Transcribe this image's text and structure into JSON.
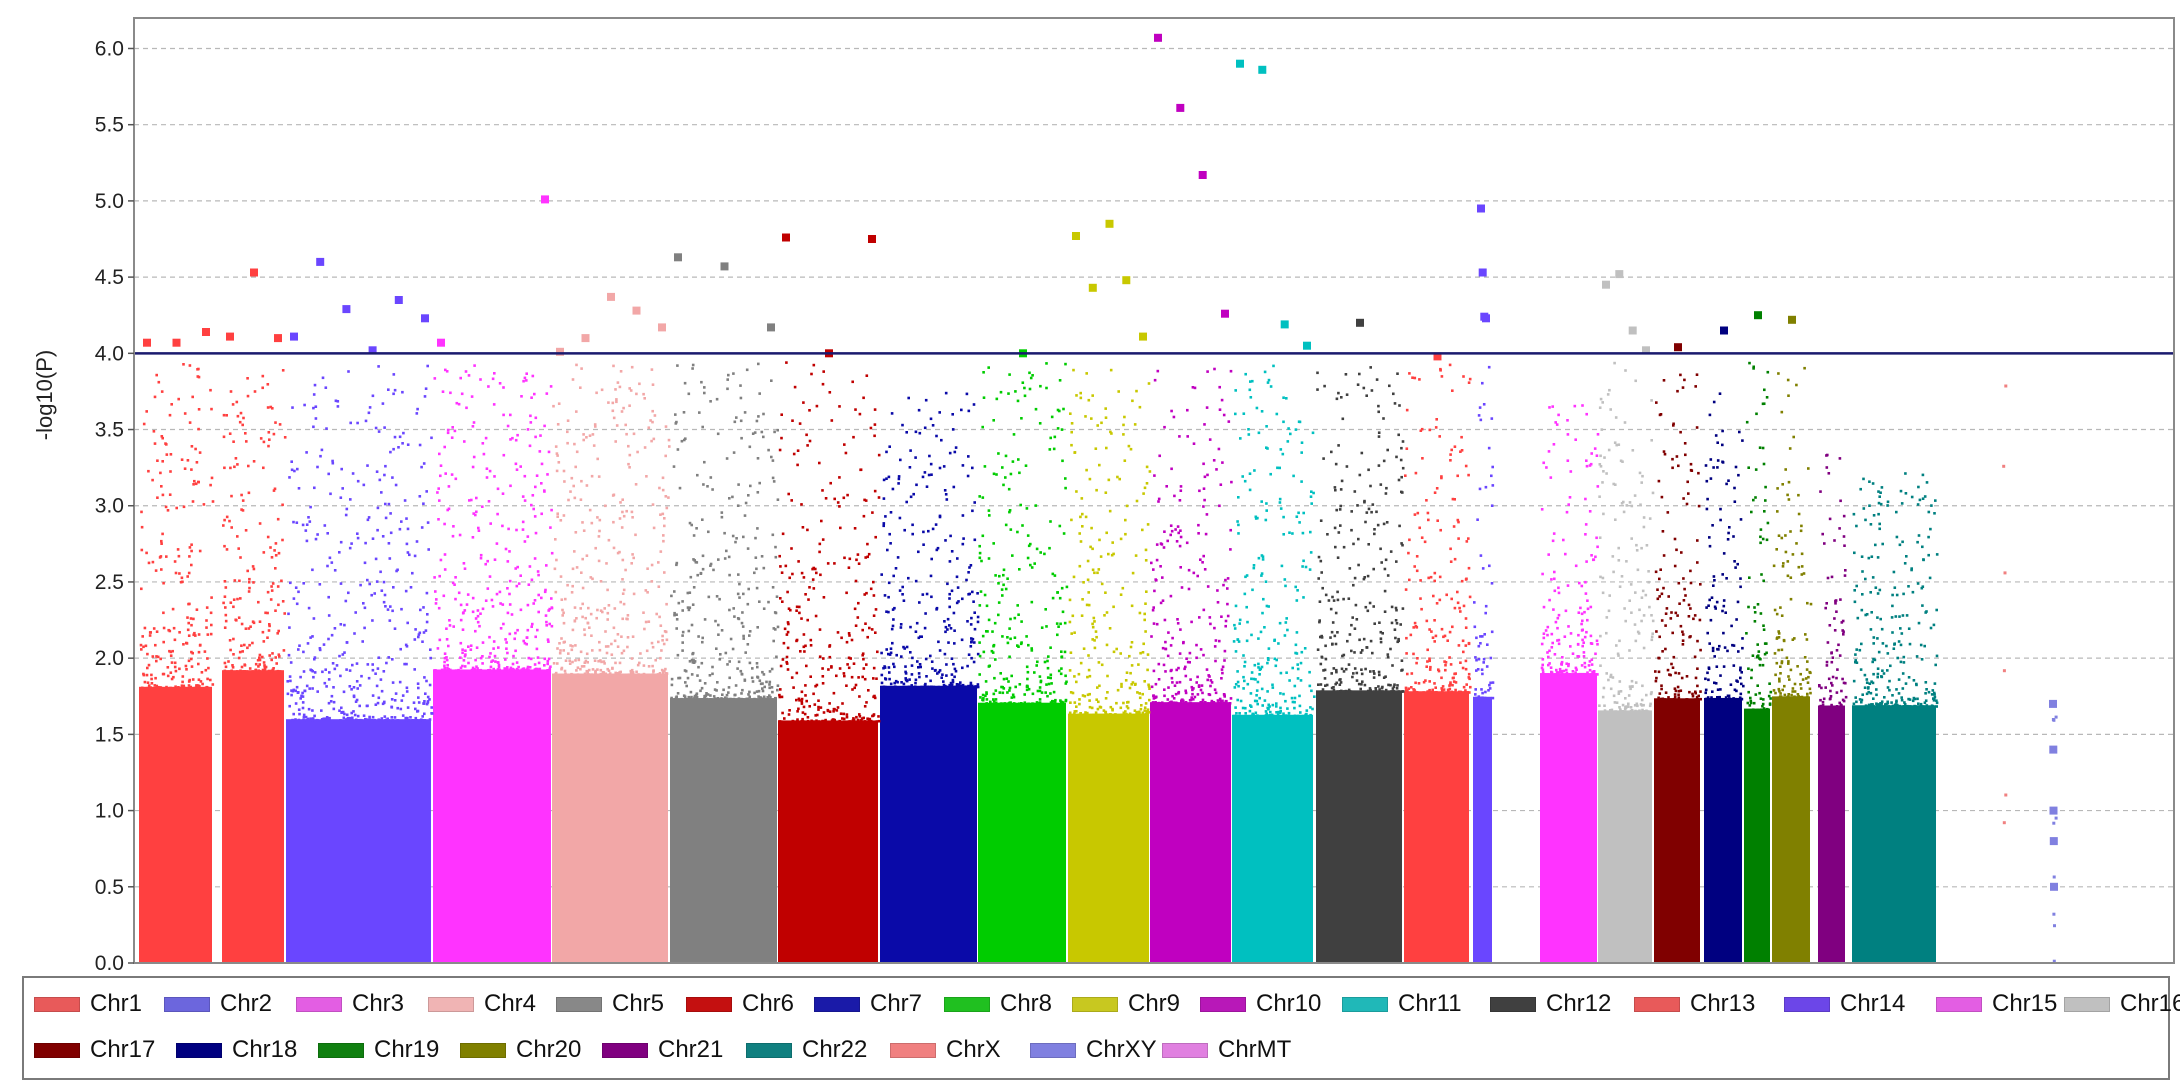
{
  "chart_data": {
    "type": "scatter",
    "subtype": "manhattan",
    "title": "",
    "xlabel": "",
    "ylabel": "-log10(P)",
    "ylim": [
      0,
      6.2
    ],
    "yticks": [
      "0.0",
      "0.5",
      "1.0",
      "1.5",
      "2.0",
      "2.5",
      "3.0",
      "3.5",
      "4.0",
      "4.5",
      "5.0",
      "5.5",
      "6.0"
    ],
    "threshold": 4.0,
    "grid": true,
    "legend_position": "bottom",
    "series": [
      {
        "name": "Chr1",
        "color": "#ff4040",
        "max": 4.15,
        "top_hits": [
          4.07,
          4.07,
          4.14
        ]
      },
      {
        "name": "Chr2",
        "color": "#ff4040",
        "max": 4.53,
        "top_hits": [
          4.11,
          4.53,
          4.1
        ]
      },
      {
        "name": "Chr3",
        "color": "#6a46ff",
        "max": 4.6,
        "top_hits": [
          4.11,
          4.6,
          4.29,
          4.02,
          4.35,
          4.23
        ]
      },
      {
        "name": "Chr4",
        "color": "#ff33ff",
        "max": 5.01,
        "top_hits": [
          4.07,
          5.01
        ]
      },
      {
        "name": "Chr5",
        "color": "#f2a7a7",
        "max": 4.37,
        "top_hits": [
          4.01,
          4.1,
          4.37,
          4.28,
          4.17
        ]
      },
      {
        "name": "Chr6",
        "color": "#808080",
        "max": 4.63,
        "top_hits": [
          4.63,
          4.57,
          4.17
        ]
      },
      {
        "name": "Chr7",
        "color": "#c00000",
        "max": 4.76,
        "top_hits": [
          4.76,
          4.0,
          4.75
        ]
      },
      {
        "name": "Chr8",
        "color": "#0a0aa8",
        "max": 3.8,
        "top_hits": []
      },
      {
        "name": "Chr9",
        "color": "#00cc00",
        "max": 4.0,
        "top_hits": [
          4.0
        ]
      },
      {
        "name": "Chr10",
        "color": "#c8c800",
        "max": 4.85,
        "top_hits": [
          4.77,
          4.43,
          4.85,
          4.48,
          4.11
        ]
      },
      {
        "name": "Chr11",
        "color": "#c000c0",
        "max": 6.07,
        "top_hits": [
          6.07,
          5.61,
          5.17,
          4.26
        ]
      },
      {
        "name": "Chr12",
        "color": "#00c0c0",
        "max": 5.9,
        "top_hits": [
          5.9,
          5.86,
          4.19,
          4.05
        ]
      },
      {
        "name": "Chr13",
        "color": "#404040",
        "max": 4.2,
        "top_hits": [
          4.2
        ]
      },
      {
        "name": "Chr14",
        "color": "#ff4040",
        "max": 4.0,
        "top_hits": [
          3.98
        ]
      },
      {
        "name": "Chr15",
        "color": "#6a46ff",
        "max": 4.95,
        "top_hits": [
          4.95,
          4.53,
          4.24,
          4.23
        ]
      },
      {
        "name": "Chr16",
        "color": "#ff33ff",
        "max": 3.7,
        "top_hits": []
      },
      {
        "name": "Chr17",
        "color": "#c0c0c0",
        "max": 4.52,
        "top_hits": [
          4.45,
          4.52,
          4.15,
          4.02
        ]
      },
      {
        "name": "Chr18",
        "color": "#800000",
        "max": 4.04,
        "top_hits": [
          4.04
        ]
      },
      {
        "name": "Chr19",
        "color": "#000080",
        "max": 4.15,
        "top_hits": [
          4.15
        ]
      },
      {
        "name": "Chr20",
        "color": "#008000",
        "max": 4.25,
        "top_hits": [
          4.25
        ]
      },
      {
        "name": "Chr21",
        "color": "#808000",
        "max": 4.22,
        "top_hits": [
          4.22
        ]
      },
      {
        "name": "Chr22",
        "color": "#800080",
        "max": 3.45,
        "top_hits": []
      },
      {
        "name": "ChrX",
        "color": "#008080",
        "max": 3.25,
        "top_hits": []
      },
      {
        "name": "ChrXY",
        "color": "#f08080",
        "max": 3.9,
        "top_hits": []
      },
      {
        "name": "ChrMT",
        "color": "#8080e0",
        "max": 1.7,
        "top_hits": [
          1.7,
          1.4,
          1.0,
          0.8,
          0.5
        ]
      }
    ],
    "legend": [
      {
        "label": "Chr1",
        "color": "#e85a5a"
      },
      {
        "label": "Chr2",
        "color": "#6c66dd"
      },
      {
        "label": "Chr3",
        "color": "#e35ee3"
      },
      {
        "label": "Chr4",
        "color": "#f0b4b4"
      },
      {
        "label": "Chr5",
        "color": "#888888"
      },
      {
        "label": "Chr6",
        "color": "#c41010"
      },
      {
        "label": "Chr7",
        "color": "#1a1aa8"
      },
      {
        "label": "Chr8",
        "color": "#20c020"
      },
      {
        "label": "Chr9",
        "color": "#c8c820"
      },
      {
        "label": "Chr10",
        "color": "#b818b8"
      },
      {
        "label": "Chr11",
        "color": "#20b8b8"
      },
      {
        "label": "Chr12",
        "color": "#404040"
      },
      {
        "label": "Chr13",
        "color": "#e85a5a"
      },
      {
        "label": "Chr14",
        "color": "#6c46e8"
      },
      {
        "label": "Chr15",
        "color": "#e35ee3"
      },
      {
        "label": "Chr16",
        "color": "#c0c0c0"
      },
      {
        "label": "Chr17",
        "color": "#800000"
      },
      {
        "label": "Chr18",
        "color": "#000080"
      },
      {
        "label": "Chr19",
        "color": "#108010"
      },
      {
        "label": "Chr20",
        "color": "#808000"
      },
      {
        "label": "Chr21",
        "color": "#800080"
      },
      {
        "label": "Chr22",
        "color": "#108080"
      },
      {
        "label": "ChrX",
        "color": "#f08080"
      },
      {
        "label": "ChrXY",
        "color": "#8080e0"
      },
      {
        "label": "ChrMT",
        "color": "#e080e0"
      }
    ]
  }
}
